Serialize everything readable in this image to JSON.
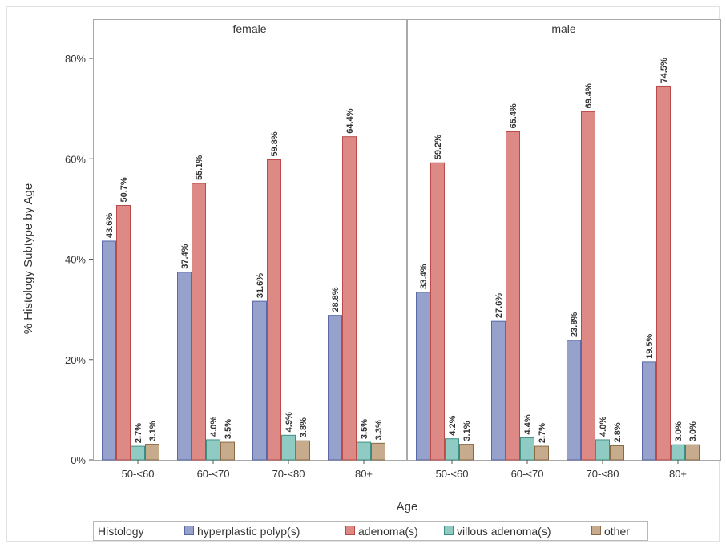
{
  "chart_data": {
    "type": "bar",
    "xlabel": "Age",
    "ylabel": "% Histology Subtype by Age",
    "ylim": [
      0,
      80
    ],
    "yticks": [
      "0%",
      "20%",
      "40%",
      "60%",
      "80%"
    ],
    "grid": false,
    "legend": {
      "title": "Histology",
      "placement": "bottom",
      "entries": [
        "hyperplastic polyp(s)",
        "adenoma(s)",
        "villous adenoma(s)",
        "other"
      ]
    },
    "colors": {
      "hyperplastic polyp(s)": {
        "fill": "#96a2cc",
        "stroke": "#5a68a8"
      },
      "adenoma(s)": {
        "fill": "#dd8a87",
        "stroke": "#b84a47"
      },
      "villous adenoma(s)": {
        "fill": "#90cbc3",
        "stroke": "#3f8f86"
      },
      "other": {
        "fill": "#c6ab8c",
        "stroke": "#8a6a45"
      }
    },
    "categories": [
      "50-<60",
      "60-<70",
      "70-<80",
      "80+"
    ],
    "panels": [
      {
        "label": "female",
        "series": [
          {
            "name": "hyperplastic polyp(s)",
            "values": [
              43.6,
              37.4,
              31.6,
              28.8
            ],
            "labels": [
              "43.6%",
              "37.4%",
              "31.6%",
              "28.8%"
            ]
          },
          {
            "name": "adenoma(s)",
            "values": [
              50.7,
              55.1,
              59.8,
              64.4
            ],
            "labels": [
              "50.7%",
              "55.1%",
              "59.8%",
              "64.4%"
            ]
          },
          {
            "name": "villous adenoma(s)",
            "values": [
              2.7,
              4.0,
              4.9,
              3.5
            ],
            "labels": [
              "2.7%",
              "4.0%",
              "4.9%",
              "3.5%"
            ]
          },
          {
            "name": "other",
            "values": [
              3.1,
              3.5,
              3.8,
              3.3
            ],
            "labels": [
              "3.1%",
              "3.5%",
              "3.8%",
              "3.3%"
            ]
          }
        ]
      },
      {
        "label": "male",
        "series": [
          {
            "name": "hyperplastic polyp(s)",
            "values": [
              33.4,
              27.6,
              23.8,
              19.5
            ],
            "labels": [
              "33.4%",
              "27.6%",
              "23.8%",
              "19.5%"
            ]
          },
          {
            "name": "adenoma(s)",
            "values": [
              59.2,
              65.4,
              69.4,
              74.5
            ],
            "labels": [
              "59.2%",
              "65.4%",
              "69.4%",
              "74.5%"
            ]
          },
          {
            "name": "villous adenoma(s)",
            "values": [
              4.2,
              4.4,
              4.0,
              3.0
            ],
            "labels": [
              "4.2%",
              "4.4%",
              "4.0%",
              "3.0%"
            ]
          },
          {
            "name": "other",
            "values": [
              3.1,
              2.7,
              2.8,
              3.0
            ],
            "labels": [
              "3.1%",
              "2.7%",
              "2.8%",
              "3.0%"
            ]
          }
        ]
      }
    ]
  }
}
